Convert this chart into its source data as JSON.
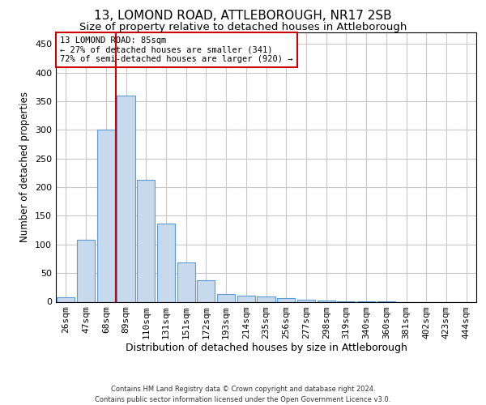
{
  "title1": "13, LOMOND ROAD, ATTLEBOROUGH, NR17 2SB",
  "title2": "Size of property relative to detached houses in Attleborough",
  "xlabel": "Distribution of detached houses by size in Attleborough",
  "ylabel": "Number of detached properties",
  "footer": "Contains HM Land Registry data © Crown copyright and database right 2024.\nContains public sector information licensed under the Open Government Licence v3.0.",
  "bar_labels": [
    "26sqm",
    "47sqm",
    "68sqm",
    "89sqm",
    "110sqm",
    "131sqm",
    "151sqm",
    "172sqm",
    "193sqm",
    "214sqm",
    "235sqm",
    "256sqm",
    "277sqm",
    "298sqm",
    "319sqm",
    "340sqm",
    "360sqm",
    "381sqm",
    "402sqm",
    "423sqm",
    "444sqm"
  ],
  "bar_values": [
    8,
    108,
    300,
    360,
    213,
    136,
    69,
    37,
    13,
    10,
    9,
    6,
    3,
    2,
    1,
    1,
    1,
    0,
    0,
    0,
    0
  ],
  "bar_color": "#c7d9ed",
  "bar_edge_color": "#5b9bd5",
  "grid_color": "#c8c8c8",
  "vline_pos": 2.5,
  "vline_color": "#cc0000",
  "annotation_line1": "13 LOMOND ROAD: 85sqm",
  "annotation_line2": "← 27% of detached houses are smaller (341)",
  "annotation_line3": "72% of semi-detached houses are larger (920) →",
  "annotation_box_color": "#cc0000",
  "ylim": [
    0,
    470
  ],
  "yticks": [
    0,
    50,
    100,
    150,
    200,
    250,
    300,
    350,
    400,
    450
  ],
  "bg_color": "#ffffff",
  "title1_fontsize": 11,
  "title2_fontsize": 9.5,
  "ylabel_fontsize": 8.5,
  "xlabel_fontsize": 9,
  "tick_fontsize": 8,
  "ann_fontsize": 7.5,
  "footer_fontsize": 6
}
